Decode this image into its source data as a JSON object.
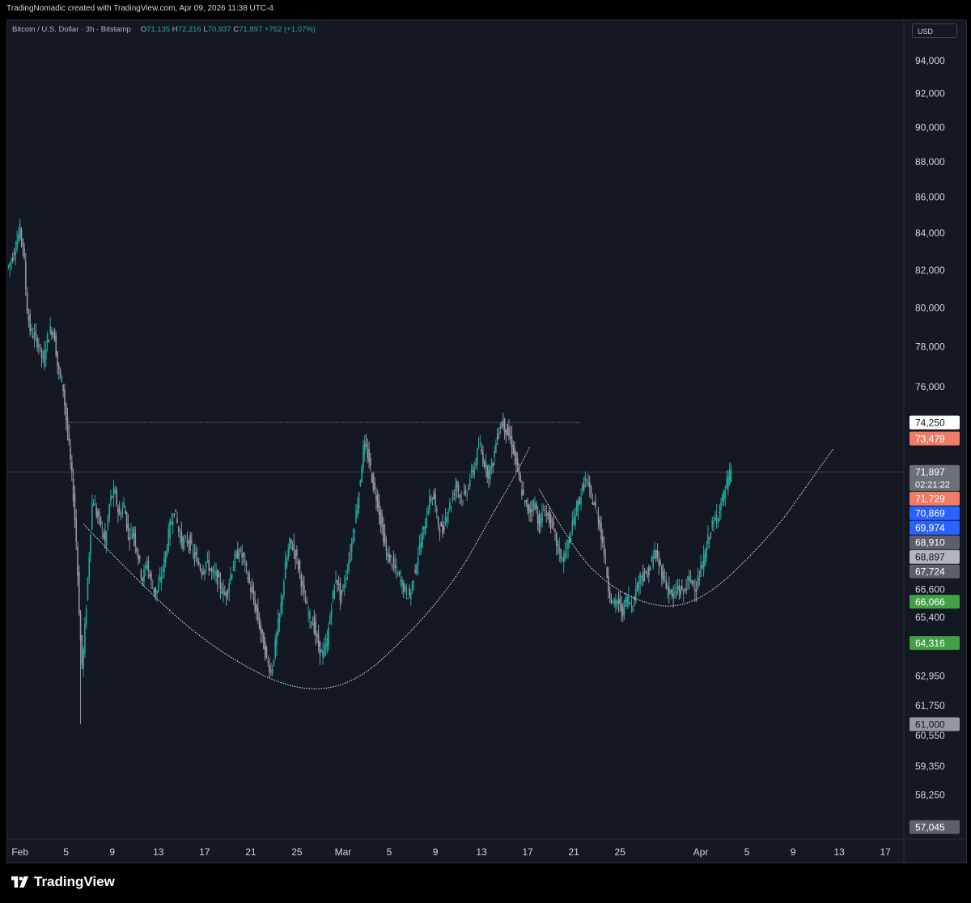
{
  "header": {
    "caption": "TradingNomadic created with TradingView.com, Apr 09, 2026 11:38 UTC-4"
  },
  "legend": {
    "symbol": "Bitcoin / U.S. Dollar · 3h · Bitstamp",
    "open_label": "O",
    "open": "71,135",
    "high_label": "H",
    "high": "72,216",
    "low_label": "L",
    "low": "70,937",
    "close_label": "C",
    "close": "71,897",
    "change": "+762 (+1.07%)"
  },
  "currency_badge": "USD",
  "footer": {
    "brand": "TradingView"
  },
  "colors": {
    "background": "#141823",
    "up": "#26a69a",
    "down": "#9598a1",
    "grid_text": "#d1d4dc",
    "curve": "#ffffff"
  },
  "chart_data": {
    "type": "candlestick",
    "title": "",
    "xlabel": "",
    "ylabel": "",
    "timeframe": "3h",
    "x_ticks": [
      "Feb",
      "5",
      "9",
      "13",
      "17",
      "21",
      "25",
      "Mar",
      "5",
      "9",
      "13",
      "17",
      "21",
      "25",
      "Apr",
      "5",
      "9",
      "13",
      "17"
    ],
    "x_tick_days": [
      0,
      4,
      8,
      12,
      16,
      20,
      24,
      28,
      32,
      36,
      40,
      44,
      48,
      52,
      59,
      63,
      67,
      71,
      75
    ],
    "x_range_days": [
      -1.1,
      76.6
    ],
    "y_scale": "log",
    "ylim": [
      56600,
      96500
    ],
    "y_ticks": [
      "94,000",
      "92,000",
      "90,000",
      "88,000",
      "86,000",
      "84,000",
      "82,000",
      "80,000",
      "78,000",
      "76,000",
      "66,600",
      "65,400",
      "62,950",
      "61,750",
      "60,550",
      "59,350",
      "58,250"
    ],
    "y_tick_values": [
      94000,
      92000,
      90000,
      88000,
      86000,
      84000,
      82000,
      80000,
      78000,
      76000,
      66600,
      65400,
      62950,
      61750,
      60550,
      59350,
      58250
    ],
    "price_path": [
      [
        -1.0,
        82200
      ],
      [
        -0.6,
        82800
      ],
      [
        0.0,
        84200
      ],
      [
        0.3,
        83200
      ],
      [
        0.6,
        80000
      ],
      [
        0.9,
        78800
      ],
      [
        1.3,
        78500
      ],
      [
        1.7,
        78000
      ],
      [
        2.0,
        77200
      ],
      [
        2.3,
        78300
      ],
      [
        2.7,
        79000
      ],
      [
        3.0,
        78500
      ],
      [
        3.3,
        76800
      ],
      [
        3.7,
        76200
      ],
      [
        4.0,
        74400
      ],
      [
        4.3,
        72800
      ],
      [
        4.6,
        71000
      ],
      [
        4.9,
        68500
      ],
      [
        5.2,
        64800
      ],
      [
        5.4,
        63200
      ],
      [
        5.7,
        65500
      ],
      [
        6.0,
        68200
      ],
      [
        6.3,
        70800
      ],
      [
        6.6,
        70000
      ],
      [
        7.0,
        69500
      ],
      [
        7.4,
        68600
      ],
      [
        7.8,
        70600
      ],
      [
        8.2,
        71000
      ],
      [
        8.6,
        69800
      ],
      [
        9.0,
        70400
      ],
      [
        9.4,
        69000
      ],
      [
        9.8,
        69200
      ],
      [
        10.2,
        68200
      ],
      [
        10.6,
        67000
      ],
      [
        11.0,
        67800
      ],
      [
        11.4,
        66800
      ],
      [
        11.8,
        66400
      ],
      [
        12.2,
        67100
      ],
      [
        12.6,
        68100
      ],
      [
        13.0,
        69400
      ],
      [
        13.4,
        70200
      ],
      [
        13.8,
        69000
      ],
      [
        14.2,
        68600
      ],
      [
        14.6,
        68800
      ],
      [
        15.0,
        68200
      ],
      [
        15.4,
        67800
      ],
      [
        15.8,
        67400
      ],
      [
        16.2,
        67900
      ],
      [
        16.6,
        67300
      ],
      [
        17.0,
        67200
      ],
      [
        17.4,
        66700
      ],
      [
        17.8,
        66300
      ],
      [
        18.2,
        67100
      ],
      [
        18.6,
        67900
      ],
      [
        19.0,
        68300
      ],
      [
        19.4,
        67900
      ],
      [
        19.8,
        67000
      ],
      [
        20.2,
        66200
      ],
      [
        20.6,
        65400
      ],
      [
        21.0,
        64500
      ],
      [
        21.4,
        63600
      ],
      [
        21.8,
        63100
      ],
      [
        22.2,
        64500
      ],
      [
        22.6,
        65800
      ],
      [
        23.0,
        67600
      ],
      [
        23.4,
        68700
      ],
      [
        23.8,
        68300
      ],
      [
        24.2,
        67500
      ],
      [
        24.6,
        66300
      ],
      [
        25.0,
        65500
      ],
      [
        25.4,
        65200
      ],
      [
        25.8,
        64300
      ],
      [
        26.2,
        63800
      ],
      [
        26.6,
        64300
      ],
      [
        27.0,
        66000
      ],
      [
        27.4,
        67200
      ],
      [
        27.8,
        66200
      ],
      [
        28.2,
        67100
      ],
      [
        28.6,
        68200
      ],
      [
        29.0,
        69500
      ],
      [
        29.4,
        71100
      ],
      [
        29.8,
        73200
      ],
      [
        30.2,
        72600
      ],
      [
        30.6,
        71300
      ],
      [
        31.0,
        70500
      ],
      [
        31.4,
        69200
      ],
      [
        31.8,
        68100
      ],
      [
        32.2,
        67800
      ],
      [
        32.6,
        67400
      ],
      [
        33.0,
        67000
      ],
      [
        33.4,
        66500
      ],
      [
        33.8,
        66300
      ],
      [
        34.2,
        67400
      ],
      [
        34.6,
        68400
      ],
      [
        35.0,
        69200
      ],
      [
        35.4,
        70400
      ],
      [
        35.8,
        70900
      ],
      [
        36.2,
        69600
      ],
      [
        36.6,
        69100
      ],
      [
        37.0,
        70100
      ],
      [
        37.4,
        70500
      ],
      [
        37.8,
        71400
      ],
      [
        38.2,
        70700
      ],
      [
        38.6,
        70800
      ],
      [
        39.0,
        71600
      ],
      [
        39.4,
        72200
      ],
      [
        39.8,
        73200
      ],
      [
        40.2,
        72400
      ],
      [
        40.6,
        71800
      ],
      [
        41.0,
        72400
      ],
      [
        41.4,
        73800
      ],
      [
        41.8,
        74300
      ],
      [
        42.2,
        73800
      ],
      [
        42.6,
        73300
      ],
      [
        43.0,
        72300
      ],
      [
        43.4,
        71200
      ],
      [
        43.8,
        70300
      ],
      [
        44.2,
        70100
      ],
      [
        44.6,
        70500
      ],
      [
        45.0,
        69400
      ],
      [
        45.4,
        70200
      ],
      [
        45.8,
        69800
      ],
      [
        46.2,
        69300
      ],
      [
        46.6,
        68400
      ],
      [
        47.0,
        67900
      ],
      [
        47.4,
        68400
      ],
      [
        47.8,
        69200
      ],
      [
        48.2,
        70200
      ],
      [
        48.6,
        70800
      ],
      [
        49.0,
        71600
      ],
      [
        49.4,
        70900
      ],
      [
        49.8,
        70300
      ],
      [
        50.2,
        69600
      ],
      [
        50.6,
        68300
      ],
      [
        51.0,
        66700
      ],
      [
        51.4,
        65900
      ],
      [
        51.8,
        66100
      ],
      [
        52.2,
        65600
      ],
      [
        52.6,
        66300
      ],
      [
        53.0,
        65900
      ],
      [
        53.4,
        66600
      ],
      [
        53.8,
        67300
      ],
      [
        54.2,
        67100
      ],
      [
        54.6,
        67600
      ],
      [
        55.0,
        68200
      ],
      [
        55.4,
        67700
      ],
      [
        55.8,
        67100
      ],
      [
        56.2,
        66600
      ],
      [
        56.6,
        66200
      ],
      [
        57.0,
        66700
      ],
      [
        57.4,
        66400
      ],
      [
        57.8,
        66900
      ],
      [
        58.2,
        67000
      ],
      [
        58.6,
        66700
      ],
      [
        59.0,
        67400
      ],
      [
        59.4,
        68200
      ],
      [
        59.8,
        69200
      ],
      [
        60.2,
        69600
      ],
      [
        60.6,
        70200
      ],
      [
        61.0,
        70800
      ],
      [
        61.4,
        71600
      ],
      [
        61.7,
        71900
      ]
    ],
    "spike_low": {
      "day": 5.3,
      "price": 61000
    },
    "resistance_line": {
      "price": 74250,
      "from_day": 4.0,
      "to_day": 48.5,
      "style": "dotted"
    },
    "current_price_line": {
      "price": 71897,
      "style": "solid-thin"
    },
    "arcs": [
      {
        "name": "left-cup",
        "points": [
          [
            5.5,
            69500
          ],
          [
            12.0,
            66000
          ],
          [
            18.0,
            63700
          ],
          [
            24.0,
            62300
          ],
          [
            29.0,
            62600
          ],
          [
            34.0,
            64800
          ],
          [
            38.0,
            67200
          ],
          [
            41.0,
            70000
          ],
          [
            43.0,
            71800
          ],
          [
            44.2,
            73100
          ]
        ]
      },
      {
        "name": "right-cup",
        "points": [
          [
            45.0,
            71100
          ],
          [
            48.0,
            68300
          ],
          [
            51.0,
            66800
          ],
          [
            54.0,
            66000
          ],
          [
            57.0,
            65800
          ],
          [
            60.0,
            66500
          ],
          [
            63.0,
            67900
          ],
          [
            66.0,
            69600
          ],
          [
            68.0,
            71100
          ],
          [
            70.5,
            73000
          ]
        ]
      }
    ],
    "price_labels": [
      {
        "value": 74250,
        "text": "74,250",
        "bg": "#ffffff",
        "fg": "#131722"
      },
      {
        "value": 73479,
        "text": "73,479",
        "bg": "#f07c68",
        "fg": "#ffffff"
      },
      {
        "value": 71897,
        "text": "71,897",
        "sub": "02:21:22",
        "bg": "#6c6f78",
        "fg": "#ffffff"
      },
      {
        "value": 71729,
        "text": "71,729",
        "bg": "#f07c68",
        "fg": "#ffffff"
      },
      {
        "value": 70869,
        "text": "70,869",
        "bg": "#2962ff",
        "fg": "#ffffff"
      },
      {
        "value": 69974,
        "text": "69,974",
        "bg": "#2962ff",
        "fg": "#ffffff"
      },
      {
        "value": 68910,
        "text": "68,910",
        "bg": "#5d6069",
        "fg": "#ffffff"
      },
      {
        "value": 68897,
        "text": "68,897",
        "bg": "#b2b5be",
        "fg": "#131722"
      },
      {
        "value": 67724,
        "text": "67,724",
        "bg": "#5d6069",
        "fg": "#ffffff"
      },
      {
        "value": 66066,
        "text": "66,066",
        "bg": "#43a047",
        "fg": "#ffffff"
      },
      {
        "value": 64316,
        "text": "64,316",
        "bg": "#43a047",
        "fg": "#ffffff"
      },
      {
        "value": 61000,
        "text": "61,000",
        "bg": "#9598a1",
        "fg": "#131722"
      },
      {
        "value": 57045,
        "text": "57,045",
        "bg": "#5d6069",
        "fg": "#ffffff"
      }
    ]
  }
}
